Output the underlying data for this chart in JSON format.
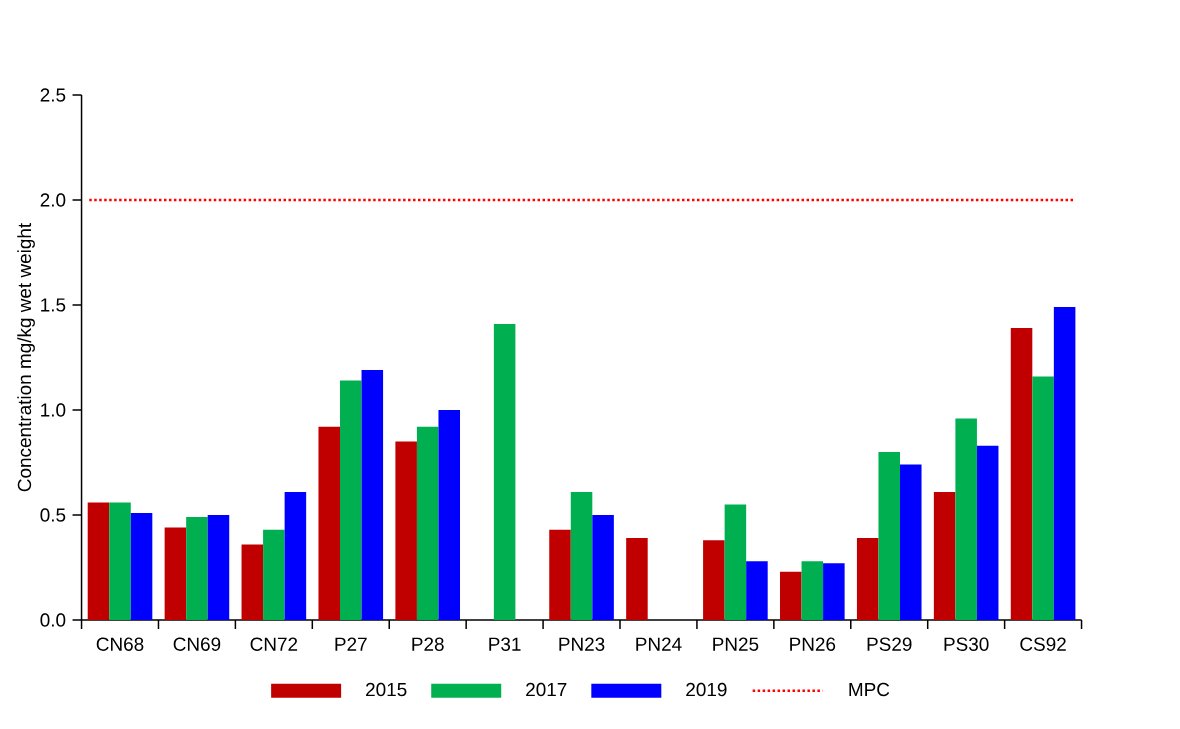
{
  "chart_data": {
    "type": "bar",
    "ylabel": "Concentration mg/kg  wet weight",
    "categories": [
      "CN68",
      "CN69",
      "CN72",
      "P27",
      "P28",
      "P31",
      "PN23",
      "PN24",
      "PN25",
      "PN26",
      "PS29",
      "PS30",
      "CS92"
    ],
    "series": [
      {
        "name": "2015",
        "color": "#c00000",
        "values": [
          0.56,
          0.44,
          0.36,
          0.92,
          0.85,
          null,
          0.43,
          0.39,
          0.38,
          0.23,
          0.39,
          0.61,
          1.39
        ]
      },
      {
        "name": "2017",
        "color": "#00b050",
        "values": [
          0.56,
          0.49,
          0.43,
          1.14,
          0.92,
          1.41,
          0.61,
          null,
          0.55,
          0.28,
          0.8,
          0.96,
          1.16
        ]
      },
      {
        "name": "2019",
        "color": "#0000ff",
        "values": [
          0.51,
          0.5,
          0.61,
          1.19,
          1.0,
          null,
          0.5,
          null,
          0.28,
          0.27,
          0.74,
          0.83,
          1.49
        ]
      }
    ],
    "ylim": [
      0,
      2.5
    ],
    "yticks": [
      {
        "value": 0,
        "label": "0.0"
      },
      0.5,
      {
        "value": 1,
        "label": "1.0"
      },
      1.5,
      {
        "value": 2,
        "label": "2.0"
      },
      2.5
    ],
    "ref_lines": [
      {
        "axis": "y",
        "value": 2,
        "label": "MPC",
        "color": "#ff0000",
        "line_style": "dotted"
      }
    ],
    "legend": "bottom"
  }
}
